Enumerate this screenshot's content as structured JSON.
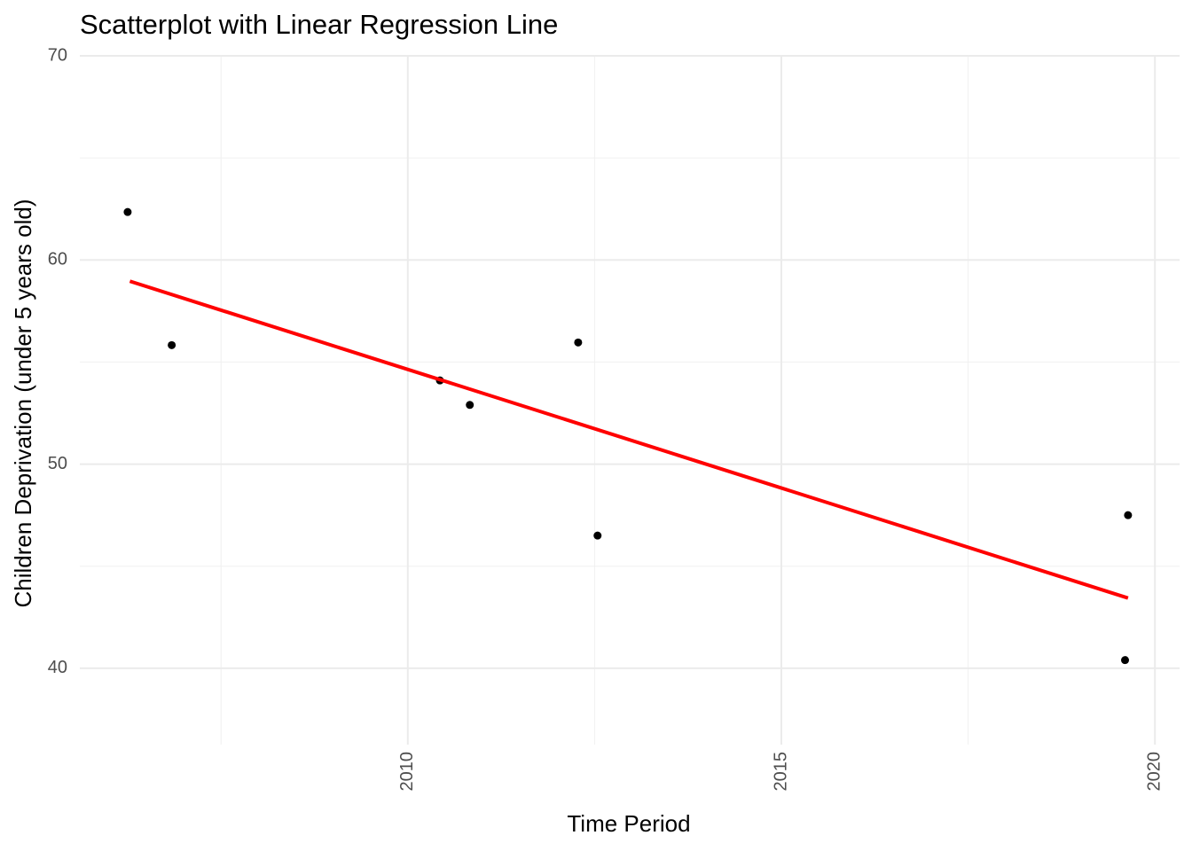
{
  "chart_data": {
    "type": "scatter",
    "title": "Scatterplot with Linear Regression Line",
    "x_label": "Time Period",
    "y_label": "Children Deprivation (under 5 years old)",
    "x": [
      2006.25,
      2006.84,
      2010.43,
      2010.83,
      2012.28,
      2012.54,
      2019.64,
      2019.6
    ],
    "y": [
      62.35,
      55.83,
      54.1,
      52.9,
      55.96,
      46.5,
      47.5,
      40.4
    ],
    "color": "#000000",
    "regression_line": {
      "x": [
        2006.28,
        2019.64
      ],
      "y": [
        58.96,
        43.44
      ],
      "color": "#ff0000"
    },
    "xlim": [
      2005.61,
      2020.33
    ],
    "ylim": [
      36.26,
      70
    ],
    "xticks": [
      2010,
      2015,
      2020
    ],
    "yticks": [
      40,
      50,
      60,
      70
    ],
    "x_minor_ticks": [
      2007.5,
      2012.5,
      2017.5
    ],
    "y_minor_ticks": [
      45,
      55,
      65
    ],
    "grid": true
  }
}
